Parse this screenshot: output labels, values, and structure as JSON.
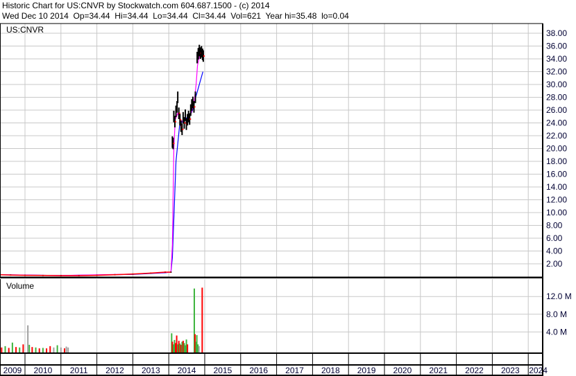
{
  "header": {
    "title": "Historic Chart for US:CNVR by Stockwatch.com 604.687.1500 - (c) 2014",
    "quote": "Wed Dec 10 2014  Op=34.44  Hi=34.44  Lo=34.44  Cl=34.44  Vol=621  Year hi=35.48  lo=0.04"
  },
  "chart_data": {
    "type": "line",
    "symbol": "US:CNVR",
    "volume_label": "Volume",
    "x_ticks": [
      "2009",
      "2010",
      "2011",
      "2012",
      "2013",
      "2014",
      "2015",
      "2016",
      "2017",
      "2018",
      "2019",
      "2020",
      "2021",
      "2022",
      "2023",
      "2024"
    ],
    "xlim": [
      2009.3,
      2024.4
    ],
    "price_ylim": [
      0,
      39.5
    ],
    "price_ticks": [
      "2.00",
      "4.00",
      "6.00",
      "8.00",
      "10.00",
      "12.00",
      "14.00",
      "16.00",
      "18.00",
      "20.00",
      "22.00",
      "24.00",
      "26.00",
      "28.00",
      "30.00",
      "32.00",
      "34.00",
      "36.00",
      "38.00"
    ],
    "volume_ylim": [
      0,
      15
    ],
    "volume_ticks": [
      {
        "v": 4,
        "label": "4.0 M"
      },
      {
        "v": 8,
        "label": "8.0 M"
      },
      {
        "v": 12,
        "label": "12.0 M"
      }
    ],
    "grid": true,
    "colors": {
      "price": "#000000",
      "price_down": "#ff0000",
      "ma_short": "#ff00ff",
      "ma_long": "#0000ff",
      "vol_up": "#3cb43c",
      "vol_down": "#ff0000",
      "vol_flat": "#a0a0a0",
      "grid": "#c8c8c8",
      "axis_text": "#000033"
    },
    "price": [
      [
        2009.3,
        0.3
      ],
      [
        2009.6,
        0.25
      ],
      [
        2010.0,
        0.2
      ],
      [
        2010.5,
        0.18
      ],
      [
        2011.0,
        0.15
      ],
      [
        2011.5,
        0.15
      ],
      [
        2012.0,
        0.2
      ],
      [
        2012.5,
        0.3
      ],
      [
        2013.0,
        0.4
      ],
      [
        2013.5,
        0.55
      ],
      [
        2013.9,
        0.7
      ],
      [
        2014.06,
        0.7
      ],
      [
        2014.1,
        21.0
      ],
      [
        2014.12,
        20.8
      ],
      [
        2014.14,
        25.0
      ],
      [
        2014.17,
        24.2
      ],
      [
        2014.2,
        25.8
      ],
      [
        2014.23,
        26.5
      ],
      [
        2014.25,
        28.0
      ],
      [
        2014.28,
        25.5
      ],
      [
        2014.31,
        24.5
      ],
      [
        2014.34,
        23.5
      ],
      [
        2014.37,
        23.0
      ],
      [
        2014.4,
        24.8
      ],
      [
        2014.43,
        24.0
      ],
      [
        2014.46,
        25.2
      ],
      [
        2014.49,
        23.8
      ],
      [
        2014.52,
        24.5
      ],
      [
        2014.55,
        25.0
      ],
      [
        2014.58,
        24.6
      ],
      [
        2014.61,
        26.0
      ],
      [
        2014.64,
        26.8
      ],
      [
        2014.67,
        27.2
      ],
      [
        2014.7,
        26.5
      ],
      [
        2014.74,
        28.0
      ],
      [
        2014.79,
        34.2
      ],
      [
        2014.82,
        34.8
      ],
      [
        2014.85,
        35.3
      ],
      [
        2014.88,
        34.9
      ],
      [
        2014.91,
        35.1
      ],
      [
        2014.94,
        34.7
      ],
      [
        2014.96,
        34.44
      ]
    ],
    "ma_short": [
      [
        2009.3,
        0.3
      ],
      [
        2011.0,
        0.17
      ],
      [
        2013.0,
        0.4
      ],
      [
        2014.06,
        0.7
      ],
      [
        2014.1,
        5
      ],
      [
        2014.14,
        20
      ],
      [
        2014.18,
        24.5
      ],
      [
        2014.25,
        25.5
      ],
      [
        2014.35,
        24.2
      ],
      [
        2014.45,
        24.5
      ],
      [
        2014.55,
        24.8
      ],
      [
        2014.62,
        25.5
      ],
      [
        2014.7,
        27
      ],
      [
        2014.76,
        30
      ],
      [
        2014.8,
        33
      ],
      [
        2014.86,
        34.5
      ],
      [
        2014.96,
        34.8
      ]
    ],
    "ma_long": [
      [
        2009.3,
        0.3
      ],
      [
        2011.0,
        0.18
      ],
      [
        2013.0,
        0.35
      ],
      [
        2013.9,
        0.6
      ],
      [
        2014.06,
        0.7
      ],
      [
        2014.1,
        3
      ],
      [
        2014.2,
        18
      ],
      [
        2014.3,
        23.5
      ],
      [
        2014.4,
        24.5
      ],
      [
        2014.5,
        24.8
      ],
      [
        2014.58,
        25
      ],
      [
        2014.66,
        26
      ],
      [
        2014.75,
        28
      ],
      [
        2014.85,
        30
      ],
      [
        2014.95,
        32
      ]
    ],
    "volume": [
      [
        2009.3,
        1.2,
        "up"
      ],
      [
        2009.35,
        0.5,
        "down"
      ],
      [
        2009.45,
        0.8,
        "up"
      ],
      [
        2009.55,
        0.4,
        "down"
      ],
      [
        2009.65,
        1.6,
        "up"
      ],
      [
        2009.75,
        0.6,
        "down"
      ],
      [
        2009.85,
        0.5,
        "up"
      ],
      [
        2009.95,
        1.2,
        "down"
      ],
      [
        2010.08,
        5.5,
        "flat"
      ],
      [
        2010.12,
        1.1,
        "up"
      ],
      [
        2010.2,
        0.6,
        "down"
      ],
      [
        2010.3,
        0.5,
        "up"
      ],
      [
        2010.4,
        0.3,
        "down"
      ],
      [
        2010.5,
        0.4,
        "up"
      ],
      [
        2010.6,
        0.3,
        "down"
      ],
      [
        2010.7,
        0.8,
        "down"
      ],
      [
        2010.8,
        0.5,
        "flat"
      ],
      [
        2010.9,
        1.0,
        "up"
      ],
      [
        2011.0,
        0.5,
        "flat"
      ],
      [
        2011.1,
        0.3,
        "down"
      ],
      [
        2011.15,
        0.7,
        "flat"
      ],
      [
        2011.2,
        0.5,
        "flat"
      ],
      [
        2014.08,
        3.7,
        "up"
      ],
      [
        2014.1,
        1.8,
        "down"
      ],
      [
        2014.13,
        1.2,
        "up"
      ],
      [
        2014.16,
        2.2,
        "up"
      ],
      [
        2014.19,
        1.5,
        "down"
      ],
      [
        2014.22,
        3.2,
        "down"
      ],
      [
        2014.25,
        1.2,
        "up"
      ],
      [
        2014.28,
        2.0,
        "down"
      ],
      [
        2014.31,
        1.4,
        "up"
      ],
      [
        2014.34,
        1.1,
        "down"
      ],
      [
        2014.37,
        1.8,
        "up"
      ],
      [
        2014.4,
        2.0,
        "down"
      ],
      [
        2014.43,
        1.5,
        "up"
      ],
      [
        2014.46,
        1.0,
        "up"
      ],
      [
        2014.49,
        2.3,
        "up"
      ],
      [
        2014.52,
        1.2,
        "down"
      ],
      [
        2014.71,
        13.8,
        "up"
      ],
      [
        2014.73,
        3.5,
        "down"
      ],
      [
        2014.76,
        1.8,
        "up"
      ],
      [
        2014.78,
        3.3,
        "up"
      ],
      [
        2014.81,
        1.2,
        "up"
      ],
      [
        2014.84,
        0.8,
        "flat"
      ],
      [
        2014.93,
        14.0,
        "down"
      ]
    ]
  }
}
